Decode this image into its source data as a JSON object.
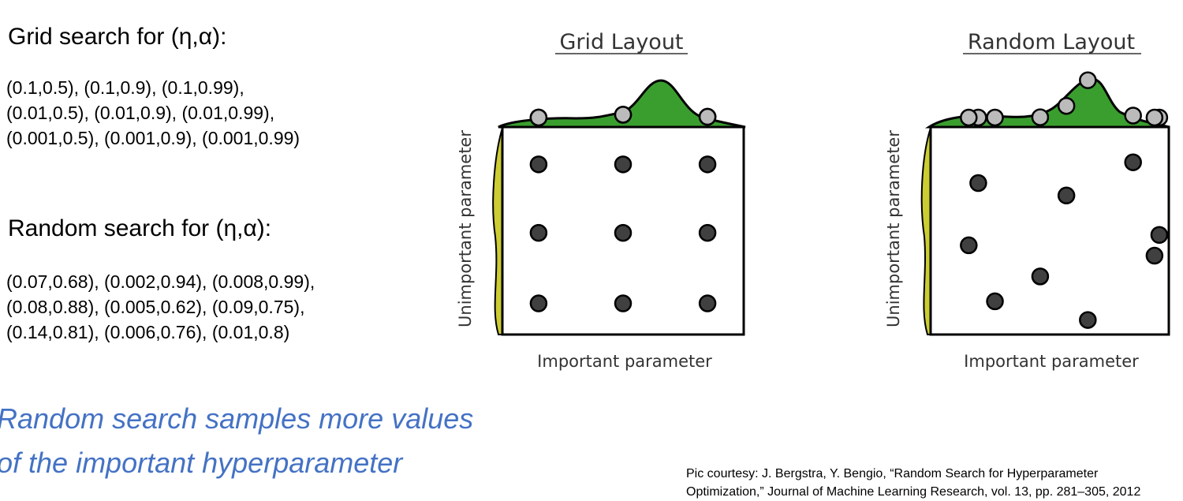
{
  "grid_search": {
    "heading": "Grid search for (η,α):",
    "lines": [
      "(0.1,0.5), (0.1,0.9), (0.1,0.99),",
      "(0.01,0.5), (0.01,0.9), (0.01,0.99),",
      "(0.001,0.5), (0.001,0.9), (0.001,0.99)"
    ]
  },
  "random_search": {
    "heading": "Random search for (η,α):",
    "lines": [
      "(0.07,0.68), (0.002,0.94), (0.008,0.99),",
      "(0.08,0.88), (0.005,0.62), (0.09,0.75),",
      "(0.14,0.81), (0.006,0.76), (0.01,0.8)"
    ]
  },
  "takeaway": {
    "lines": [
      "Random search samples more values",
      "of the important hyperparameter"
    ]
  },
  "credit": {
    "lines": [
      "Pic courtesy: J. Bergstra, Y. Bengio, “Random Search for Hyperparameter",
      "Optimization,” Journal of Machine Learning Research, vol. 13, pp. 281–305, 2012"
    ]
  },
  "colors": {
    "accent": "#4472c4",
    "important_density": "#3a9e2f",
    "unimportant_density": "#cccc33",
    "point": "#404040",
    "marginal_point": "#bbbbbb"
  },
  "diagrams": [
    {
      "title": "Grid Layout",
      "xlabel": "Important parameter",
      "ylabel": "Unimportant parameter",
      "points": [
        {
          "x": 0.15,
          "y": 0.82
        },
        {
          "x": 0.5,
          "y": 0.82
        },
        {
          "x": 0.85,
          "y": 0.82
        },
        {
          "x": 0.15,
          "y": 0.49
        },
        {
          "x": 0.5,
          "y": 0.49
        },
        {
          "x": 0.85,
          "y": 0.49
        },
        {
          "x": 0.15,
          "y": 0.15
        },
        {
          "x": 0.5,
          "y": 0.15
        },
        {
          "x": 0.85,
          "y": 0.15
        }
      ]
    },
    {
      "title": "Random Layout",
      "xlabel": "Important parameter",
      "ylabel": "Unimportant parameter",
      "points": [
        {
          "x": 0.85,
          "y": 0.83
        },
        {
          "x": 0.2,
          "y": 0.73
        },
        {
          "x": 0.57,
          "y": 0.67
        },
        {
          "x": 0.96,
          "y": 0.48
        },
        {
          "x": 0.16,
          "y": 0.43
        },
        {
          "x": 0.94,
          "y": 0.38
        },
        {
          "x": 0.46,
          "y": 0.28
        },
        {
          "x": 0.27,
          "y": 0.16
        },
        {
          "x": 0.66,
          "y": 0.07
        }
      ]
    }
  ]
}
